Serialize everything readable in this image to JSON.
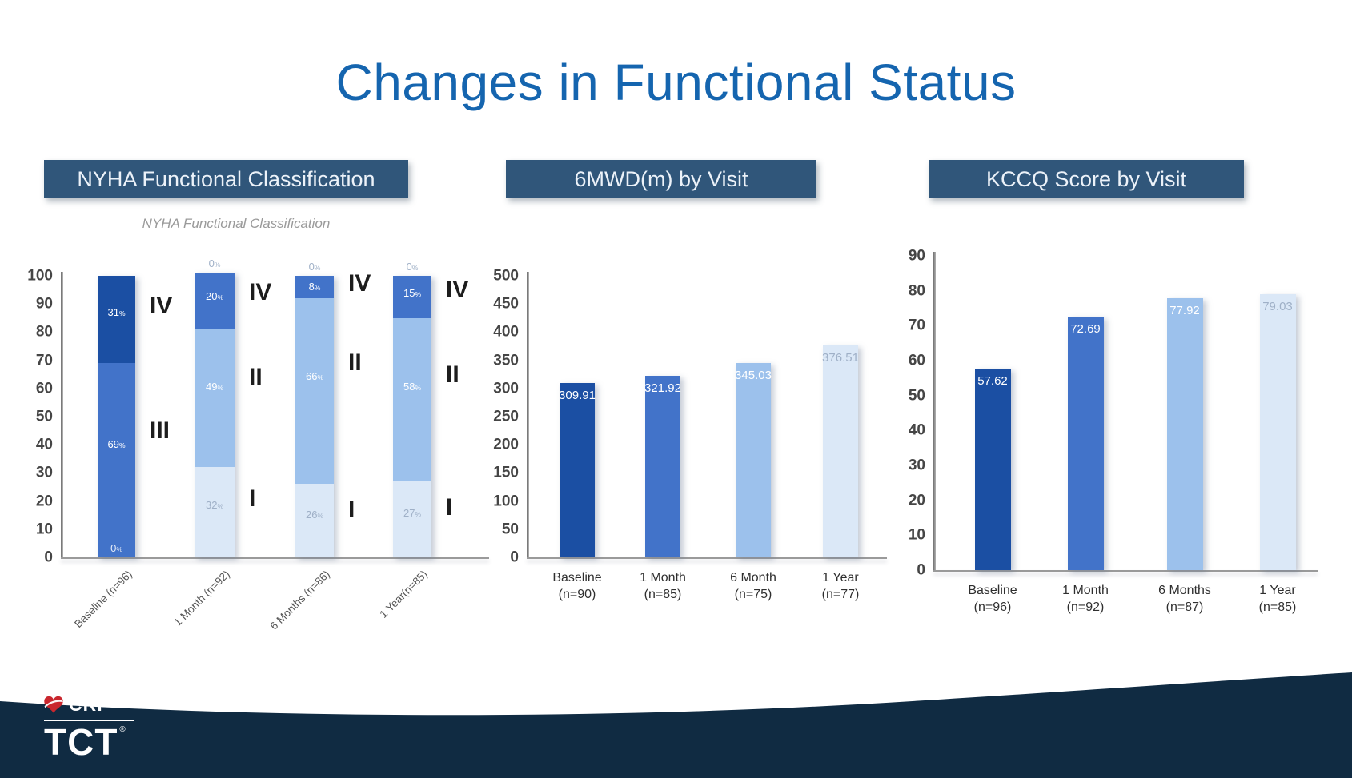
{
  "title": "Changes in Functional Status",
  "panels": [
    {
      "header": "NYHA Functional Classification"
    },
    {
      "header": "6MWD(m) by Visit"
    },
    {
      "header": "KCCQ Score by Visit"
    }
  ],
  "colors": {
    "navy": "#1b4fa3",
    "royal": "#4273c9",
    "light": "#9cc1ec",
    "pale": "#dbe8f7",
    "white": "#ffffff",
    "muted": "#9fb0c7",
    "header_bg": "#30567a",
    "title_blue": "#1565af",
    "band_navy": "#102b42",
    "crf_red": "#c9272e"
  },
  "chart_data": [
    {
      "type": "stacked-bar",
      "title": "NYHA Functional Classification",
      "ylim": [
        0,
        100
      ],
      "ytick_step": 10,
      "grid": false,
      "legend": "none",
      "categories": [
        "Baseline (n=96)",
        "1 Month (n=92)",
        "6 Months (n=86)",
        "1 Year(n=85)"
      ],
      "bars": [
        {
          "category": "Baseline (n=96)",
          "bottom_label": "0",
          "top_label": null,
          "segments": [
            {
              "class": "III",
              "value": 69,
              "color": "royal",
              "text_color": "white"
            },
            {
              "class": "IV",
              "value": 31,
              "color": "navy",
              "text_color": "white"
            }
          ],
          "annotations": [
            {
              "text": "III",
              "seg": 0
            },
            {
              "text": "IV",
              "seg": 1
            }
          ]
        },
        {
          "category": "1 Month (n=92)",
          "bottom_label": null,
          "top_label": "0",
          "segments": [
            {
              "class": "I",
              "value": 32,
              "color": "pale",
              "text_color": "muted"
            },
            {
              "class": "II",
              "value": 49,
              "color": "light",
              "text_color": "white"
            },
            {
              "class": "IV",
              "value": 20,
              "color": "royal",
              "text_color": "white"
            }
          ],
          "annotations": [
            {
              "text": "I",
              "seg": 0
            },
            {
              "text": "II",
              "seg": 1
            },
            {
              "text": "IV",
              "seg": 2
            }
          ]
        },
        {
          "category": "6 Months (n=86)",
          "bottom_label": null,
          "top_label": "0",
          "segments": [
            {
              "class": "I",
              "value": 26,
              "color": "pale",
              "text_color": "muted"
            },
            {
              "class": "II",
              "value": 66,
              "color": "light",
              "text_color": "white"
            },
            {
              "class": "IV",
              "value": 8,
              "color": "royal",
              "text_color": "white"
            }
          ],
          "annotations": [
            {
              "text": "I",
              "seg": 0
            },
            {
              "text": "II",
              "seg": 1
            },
            {
              "text": "IV",
              "seg": 2
            }
          ]
        },
        {
          "category": "1 Year(n=85)",
          "bottom_label": null,
          "top_label": "0",
          "segments": [
            {
              "class": "I",
              "value": 27,
              "color": "pale",
              "text_color": "muted"
            },
            {
              "class": "II",
              "value": 58,
              "color": "light",
              "text_color": "white"
            },
            {
              "class": "IV",
              "value": 15,
              "color": "royal",
              "text_color": "white"
            }
          ],
          "annotations": [
            {
              "text": "I",
              "seg": 0
            },
            {
              "text": "II",
              "seg": 1
            },
            {
              "text": "IV",
              "seg": 2
            }
          ]
        }
      ]
    },
    {
      "type": "bar",
      "title": "6MWD(m) by Visit",
      "ylim": [
        0,
        500
      ],
      "ytick_step": 50,
      "grid": false,
      "legend": "none",
      "categories": [
        "Baseline",
        "1 Month",
        "6 Month",
        "1 Year"
      ],
      "n_labels": [
        "(n=90)",
        "(n=85)",
        "(n=75)",
        "(n=77)"
      ],
      "values": [
        309.91,
        321.92,
        345.03,
        376.51
      ],
      "value_labels": [
        "309.91",
        "321.92",
        "345.03",
        "376.51"
      ],
      "bar_colors": [
        "navy",
        "royal",
        "light",
        "pale"
      ],
      "value_label_colors": [
        "white",
        "white",
        "white",
        "muted"
      ]
    },
    {
      "type": "bar",
      "title": "KCCQ Score by Visit",
      "ylim": [
        0,
        90
      ],
      "ytick_step": 10,
      "grid": false,
      "legend": "none",
      "categories": [
        "Baseline",
        "1 Month",
        "6 Months",
        "1 Year"
      ],
      "n_labels": [
        "(n=96)",
        "(n=92)",
        "(n=87)",
        "(n=85)"
      ],
      "values": [
        57.62,
        72.69,
        77.92,
        79.03
      ],
      "value_labels": [
        "57.62",
        "72.69",
        "77.92",
        "79.03"
      ],
      "bar_colors": [
        "navy",
        "royal",
        "light",
        "pale"
      ],
      "value_label_colors": [
        "white",
        "white",
        "white",
        "muted"
      ]
    }
  ],
  "logo": {
    "crf": "CRF",
    "tct": "TCT",
    "reg": "®"
  }
}
